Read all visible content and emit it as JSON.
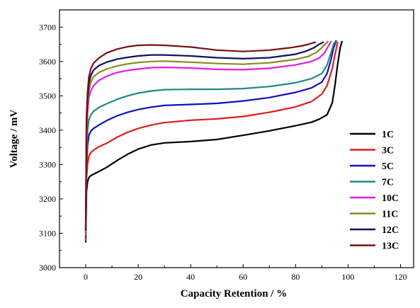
{
  "chart_data": {
    "type": "line",
    "title": "",
    "xlabel": "Capacity Retention / %",
    "ylabel": "Voltage / mV",
    "xlim": [
      -10,
      125
    ],
    "ylim": [
      3000,
      3750
    ],
    "xticks": [
      0,
      20,
      40,
      60,
      80,
      100,
      120
    ],
    "yticks": [
      3000,
      3100,
      3200,
      3300,
      3400,
      3500,
      3600,
      3700
    ],
    "grid": false,
    "legend_position": "right",
    "series": [
      {
        "name": "1C",
        "color": "#000000",
        "x": [
          0,
          0.3,
          0.7,
          1.2,
          2,
          3,
          5,
          8,
          12,
          16,
          20,
          25,
          30,
          40,
          50,
          60,
          70,
          80,
          86,
          89,
          92,
          94,
          95,
          96,
          97,
          97.7
        ],
        "y": [
          3075,
          3220,
          3250,
          3262,
          3268,
          3272,
          3280,
          3292,
          3312,
          3330,
          3345,
          3357,
          3363,
          3367,
          3373,
          3385,
          3398,
          3413,
          3423,
          3432,
          3445,
          3480,
          3530,
          3590,
          3640,
          3658
        ]
      },
      {
        "name": "3C",
        "color": "#e41a1c",
        "x": [
          0,
          0.3,
          0.7,
          1.2,
          2,
          3,
          5,
          8,
          12,
          16,
          20,
          25,
          30,
          40,
          50,
          60,
          70,
          80,
          86,
          90,
          92,
          94,
          95,
          96
        ],
        "y": [
          3080,
          3260,
          3300,
          3325,
          3335,
          3342,
          3352,
          3362,
          3380,
          3394,
          3405,
          3415,
          3422,
          3429,
          3433,
          3440,
          3452,
          3468,
          3483,
          3505,
          3530,
          3580,
          3620,
          3655
        ]
      },
      {
        "name": "5C",
        "color": "#1010c0",
        "x": [
          0,
          0.3,
          0.7,
          1.2,
          2,
          3,
          5,
          8,
          12,
          16,
          20,
          25,
          30,
          40,
          50,
          60,
          70,
          80,
          86,
          90,
          92,
          93.5,
          94.5,
          95.5
        ],
        "y": [
          3090,
          3300,
          3355,
          3385,
          3398,
          3405,
          3415,
          3428,
          3442,
          3452,
          3460,
          3467,
          3472,
          3475,
          3478,
          3485,
          3495,
          3510,
          3523,
          3540,
          3565,
          3605,
          3640,
          3660
        ]
      },
      {
        "name": "7C",
        "color": "#1f8a80",
        "x": [
          0,
          0.3,
          0.7,
          1.2,
          2,
          3,
          5,
          8,
          12,
          16,
          20,
          25,
          30,
          40,
          50,
          60,
          70,
          80,
          86,
          90,
          92,
          93.5,
          94.5,
          95.3
        ],
        "y": [
          3095,
          3330,
          3400,
          3430,
          3445,
          3455,
          3466,
          3477,
          3490,
          3500,
          3508,
          3514,
          3518,
          3519,
          3519,
          3521,
          3527,
          3538,
          3550,
          3565,
          3590,
          3625,
          3650,
          3660
        ]
      },
      {
        "name": "10C",
        "color": "#e020e0",
        "x": [
          0,
          0.3,
          0.7,
          1.2,
          2,
          3,
          5,
          8,
          12,
          16,
          20,
          25,
          30,
          40,
          50,
          60,
          70,
          80,
          86,
          89,
          91,
          92.5,
          93.5
        ],
        "y": [
          3100,
          3370,
          3450,
          3495,
          3515,
          3530,
          3545,
          3557,
          3568,
          3574,
          3578,
          3582,
          3583,
          3581,
          3577,
          3576,
          3580,
          3590,
          3600,
          3610,
          3625,
          3645,
          3658
        ]
      },
      {
        "name": "11C",
        "color": "#8a8a20",
        "x": [
          0,
          0.3,
          0.7,
          1.2,
          2,
          3,
          5,
          8,
          12,
          16,
          20,
          25,
          30,
          40,
          50,
          60,
          70,
          80,
          85,
          88,
          90,
          91.5,
          92.3
        ],
        "y": [
          3105,
          3390,
          3470,
          3515,
          3540,
          3555,
          3568,
          3578,
          3587,
          3593,
          3597,
          3600,
          3601,
          3598,
          3594,
          3592,
          3596,
          3606,
          3615,
          3627,
          3640,
          3652,
          3658
        ]
      },
      {
        "name": "12C",
        "color": "#101060",
        "x": [
          0,
          0.3,
          0.7,
          1.2,
          2,
          3,
          5,
          8,
          12,
          16,
          20,
          25,
          30,
          40,
          50,
          60,
          70,
          80,
          84,
          87,
          89,
          90.5
        ],
        "y": [
          3110,
          3420,
          3490,
          3535,
          3560,
          3575,
          3588,
          3598,
          3607,
          3612,
          3616,
          3619,
          3619,
          3616,
          3611,
          3608,
          3611,
          3621,
          3630,
          3640,
          3650,
          3656
        ]
      },
      {
        "name": "13C",
        "color": "#7a1010",
        "x": [
          0,
          0.3,
          0.7,
          1.2,
          2,
          3,
          5,
          8,
          12,
          16,
          20,
          25,
          30,
          40,
          50,
          60,
          70,
          78,
          82,
          85,
          87.5
        ],
        "y": [
          3115,
          3440,
          3510,
          3555,
          3580,
          3595,
          3610,
          3625,
          3636,
          3643,
          3647,
          3648,
          3647,
          3642,
          3633,
          3629,
          3633,
          3640,
          3645,
          3650,
          3656
        ]
      }
    ]
  }
}
